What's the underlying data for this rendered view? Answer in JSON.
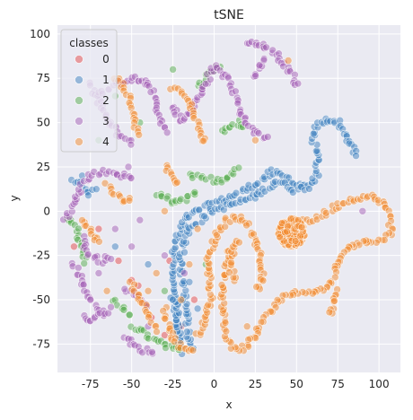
{
  "chart_data": {
    "type": "scatter",
    "title": "tSNE",
    "xlabel": "x",
    "ylabel": "y",
    "xlim": [
      -95,
      113
    ],
    "ylim": [
      -91,
      105
    ],
    "xticks": [
      -75,
      -50,
      -25,
      0,
      25,
      50,
      75,
      100
    ],
    "yticks": [
      -75,
      -50,
      -25,
      0,
      25,
      50,
      75,
      100
    ],
    "grid": true,
    "legend": {
      "title": "classes",
      "placement": "top-left"
    },
    "point_alpha": 0.5,
    "series": [
      {
        "name": "0",
        "color": "#e34a4a",
        "points": [
          [
            -50,
            -39
          ],
          [
            -46,
            -42
          ],
          [
            -27,
            -28
          ],
          [
            -38,
            -60
          ],
          [
            -20,
            -65
          ],
          [
            -58,
            -28
          ],
          [
            -12,
            -50
          ],
          [
            -70,
            -10
          ],
          [
            -85,
            -20
          ],
          [
            -30,
            -70
          ]
        ]
      },
      {
        "name": "1",
        "color": "#3f82c0",
        "strokes": [
          [
            [
              -20,
              -80
            ],
            [
              -23,
              -60
            ],
            [
              -25,
              -40
            ],
            [
              -24,
              -20
            ],
            [
              -18,
              -5
            ],
            [
              -5,
              3
            ],
            [
              10,
              8
            ],
            [
              25,
              15
            ],
            [
              35,
              22
            ],
            [
              42,
              20
            ],
            [
              50,
              15
            ],
            [
              58,
              15
            ],
            [
              62,
              20
            ],
            [
              63,
              32
            ],
            [
              60,
              40
            ],
            [
              62,
              48
            ],
            [
              68,
              52
            ],
            [
              76,
              50
            ],
            [
              80,
              42
            ],
            [
              85,
              34
            ],
            [
              87,
              30
            ]
          ],
          [
            [
              -14,
              -78
            ],
            [
              -17,
              -60
            ],
            [
              -19,
              -40
            ],
            [
              -20,
              -25
            ],
            [
              -15,
              -10
            ],
            [
              -2,
              0
            ],
            [
              12,
              4
            ],
            [
              28,
              10
            ],
            [
              38,
              17
            ],
            [
              48,
              12
            ],
            [
              58,
              14
            ]
          ],
          [
            [
              -85,
              18
            ],
            [
              -80,
              15
            ],
            [
              -75,
              10
            ],
            [
              -70,
              12
            ]
          ],
          [
            [
              -20,
              -70
            ],
            [
              -24,
              -65
            ],
            [
              -22,
              -55
            ],
            [
              -26,
              -48
            ]
          ]
        ],
        "points": [
          [
            -80,
            20
          ],
          [
            -60,
            -20
          ],
          [
            -40,
            -30
          ],
          [
            -10,
            -55
          ],
          [
            -25,
            -50
          ],
          [
            -15,
            -40
          ]
        ]
      },
      {
        "name": "2",
        "color": "#56ab4e",
        "strokes": [
          [
            [
              -90,
              -3
            ],
            [
              -84,
              -10
            ],
            [
              -80,
              -20
            ],
            [
              -78,
              -30
            ]
          ],
          [
            [
              -15,
              20
            ],
            [
              -5,
              18
            ],
            [
              5,
              17
            ],
            [
              10,
              20
            ],
            [
              15,
              25
            ]
          ],
          [
            [
              -35,
              10
            ],
            [
              -25,
              5
            ],
            [
              -15,
              8
            ],
            [
              -10,
              12
            ]
          ],
          [
            [
              -50,
              -65
            ],
            [
              -40,
              -70
            ],
            [
              -30,
              -75
            ],
            [
              -20,
              -80
            ]
          ],
          [
            [
              -10,
              70
            ],
            [
              -5,
              75
            ],
            [
              0,
              80
            ],
            [
              5,
              83
            ]
          ],
          [
            [
              5,
              45
            ],
            [
              10,
              48
            ],
            [
              15,
              50
            ],
            [
              20,
              45
            ]
          ],
          [
            [
              -60,
              -50
            ],
            [
              -55,
              -55
            ],
            [
              -50,
              -60
            ]
          ]
        ],
        "points": [
          [
            30,
            93
          ],
          [
            -45,
            50
          ],
          [
            -30,
            -45
          ],
          [
            -5,
            -30
          ],
          [
            -25,
            80
          ],
          [
            -60,
            65
          ],
          [
            -70,
            40
          ]
        ]
      },
      {
        "name": "3",
        "color": "#a45fb5",
        "strokes": [
          [
            [
              -90,
              -5
            ],
            [
              -85,
              5
            ],
            [
              -80,
              15
            ],
            [
              -75,
              20
            ],
            [
              -70,
              22
            ],
            [
              -62,
              22
            ],
            [
              -55,
              20
            ],
            [
              -48,
              18
            ]
          ],
          [
            [
              -75,
              72
            ],
            [
              -70,
              62
            ],
            [
              -65,
              52
            ],
            [
              -58,
              44
            ],
            [
              -48,
              38
            ]
          ],
          [
            [
              -70,
              65
            ],
            [
              -60,
              72
            ],
            [
              -50,
              75
            ],
            [
              -40,
              72
            ],
            [
              -35,
              62
            ],
            [
              -33,
              52
            ],
            [
              -28,
              43
            ]
          ],
          [
            [
              -25,
              60
            ],
            [
              -20,
              50
            ],
            [
              -12,
              60
            ],
            [
              -5,
              72
            ],
            [
              0,
              82
            ],
            [
              10,
              74
            ],
            [
              15,
              60
            ],
            [
              18,
              50
            ],
            [
              25,
              45
            ],
            [
              33,
              40
            ]
          ],
          [
            [
              20,
              96
            ],
            [
              30,
              93
            ],
            [
              38,
              88
            ],
            [
              45,
              80
            ],
            [
              52,
              70
            ]
          ],
          [
            [
              -85,
              -30
            ],
            [
              -80,
              -40
            ],
            [
              -75,
              -50
            ],
            [
              -70,
              -55
            ],
            [
              -65,
              -60
            ]
          ],
          [
            [
              -55,
              -70
            ],
            [
              -50,
              -75
            ],
            [
              -45,
              -78
            ],
            [
              -35,
              -80
            ]
          ],
          [
            [
              -80,
              -15
            ],
            [
              -75,
              -25
            ],
            [
              -68,
              -28
            ],
            [
              -60,
              -25
            ]
          ],
          [
            [
              -80,
              -60
            ],
            [
              -75,
              -62
            ],
            [
              -70,
              -58
            ],
            [
              -62,
              -55
            ]
          ],
          [
            [
              25,
              75
            ],
            [
              28,
              82
            ],
            [
              30,
              88
            ]
          ],
          [
            [
              -55,
              -45
            ],
            [
              -45,
              -48
            ],
            [
              -40,
              -55
            ]
          ]
        ],
        "points": [
          [
            -70,
            -35
          ],
          [
            -50,
            -20
          ],
          [
            -60,
            -10
          ],
          [
            -45,
            -5
          ],
          [
            -30,
            -25
          ],
          [
            -18,
            -35
          ],
          [
            -40,
            -65
          ],
          [
            90,
            0
          ],
          [
            -52,
            25
          ]
        ]
      },
      {
        "name": "4",
        "color": "#f28a2e",
        "cluster": {
          "center": [
            47,
            -12
          ],
          "radius": 8,
          "count": 160
        },
        "strokes": [
          [
            [
              55,
              -5
            ],
            [
              60,
              -5
            ],
            [
              65,
              -3
            ],
            [
              72,
              2
            ],
            [
              80,
              6
            ],
            [
              88,
              8
            ],
            [
              95,
              8
            ],
            [
              102,
              5
            ],
            [
              106,
              -2
            ],
            [
              107,
              -12
            ],
            [
              102,
              -17
            ],
            [
              95,
              -17
            ],
            [
              88,
              -18
            ],
            [
              82,
              -20
            ],
            [
              77,
              -25
            ],
            [
              74,
              -32
            ],
            [
              72,
              -40
            ],
            [
              65,
              -45
            ],
            [
              55,
              -45
            ],
            [
              45,
              -47
            ],
            [
              40,
              -50
            ],
            [
              35,
              -55
            ],
            [
              30,
              -62
            ],
            [
              25,
              -70
            ],
            [
              20,
              -76
            ],
            [
              15,
              -78
            ],
            [
              10,
              -76
            ],
            [
              7,
              -68
            ],
            [
              5,
              -55
            ],
            [
              5,
              -42
            ],
            [
              8,
              -30
            ],
            [
              10,
              -20
            ]
          ],
          [
            [
              -10,
              -70
            ],
            [
              -5,
              -60
            ],
            [
              -2,
              -50
            ],
            [
              -2,
              -40
            ],
            [
              -5,
              -30
            ],
            [
              -2,
              -22
            ],
            [
              2,
              -12
            ],
            [
              8,
              -5
            ],
            [
              15,
              -3
            ],
            [
              20,
              -8
            ],
            [
              25,
              -15
            ],
            [
              28,
              -25
            ],
            [
              30,
              -35
            ],
            [
              28,
              -42
            ],
            [
              25,
              -45
            ]
          ],
          [
            [
              12,
              -40
            ],
            [
              10,
              -30
            ],
            [
              12,
              -20
            ],
            [
              15,
              -15
            ]
          ],
          [
            [
              -65,
              15
            ],
            [
              -60,
              10
            ],
            [
              -55,
              5
            ],
            [
              -50,
              8
            ]
          ],
          [
            [
              -60,
              75
            ],
            [
              -55,
              70
            ],
            [
              -50,
              60
            ],
            [
              -48,
              50
            ],
            [
              -45,
              42
            ]
          ],
          [
            [
              -30,
              -55
            ],
            [
              -28,
              -65
            ],
            [
              -25,
              -72
            ],
            [
              -18,
              -78
            ],
            [
              -10,
              -80
            ]
          ],
          [
            [
              -80,
              -5
            ],
            [
              -75,
              -10
            ],
            [
              -70,
              -20
            ]
          ],
          [
            [
              -25,
              70
            ],
            [
              -18,
              65
            ],
            [
              -12,
              55
            ],
            [
              -8,
              45
            ],
            [
              -5,
              38
            ]
          ],
          [
            [
              -50,
              -40
            ],
            [
              -45,
              -50
            ],
            [
              -40,
              -58
            ],
            [
              -35,
              -68
            ]
          ],
          [
            [
              -30,
              25
            ],
            [
              -25,
              18
            ],
            [
              -20,
              15
            ]
          ],
          [
            [
              75,
              -45
            ],
            [
              72,
              -55
            ],
            [
              70,
              -60
            ]
          ]
        ],
        "points": [
          [
            -10,
            -10
          ],
          [
            -15,
            -30
          ],
          [
            -35,
            -35
          ],
          [
            -20,
            -50
          ],
          [
            -40,
            -45
          ],
          [
            20,
            -65
          ],
          [
            25,
            40
          ],
          [
            45,
            85
          ],
          [
            -65,
            -45
          ],
          [
            -30,
            0
          ]
        ]
      }
    ]
  }
}
